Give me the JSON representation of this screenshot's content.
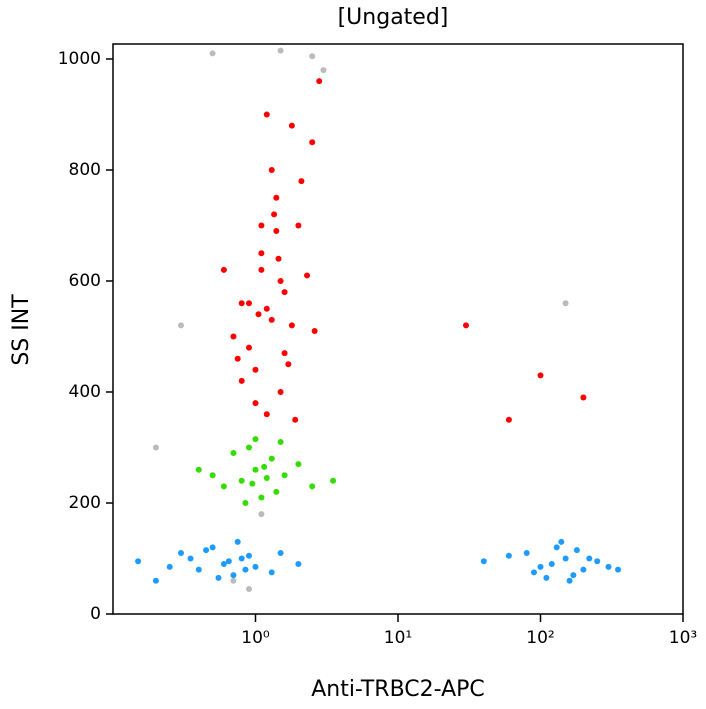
{
  "chart_data": {
    "type": "scatter",
    "title": "[Ungated]",
    "x_label": "Anti-TRBC2-APC",
    "y_label": "SS INT",
    "x_scale": "log",
    "xlim": [
      0.1,
      1000
    ],
    "xticks": [
      {
        "value": 1,
        "label": "10⁰"
      },
      {
        "value": 10,
        "label": "10¹"
      },
      {
        "value": 100,
        "label": "10²"
      },
      {
        "value": 1000,
        "label": "10³"
      }
    ],
    "ylim": [
      0,
      1027
    ],
    "yticks": [
      0,
      200,
      400,
      600,
      800,
      1000
    ],
    "series": [
      {
        "color": "#bbbbbb",
        "x": [
          0.5,
          1.5,
          2.5,
          0.3,
          3.0,
          0.9,
          0.2,
          150,
          1.1,
          0.7
        ],
        "values": [
          1010,
          1015,
          1005,
          520,
          980,
          45,
          300,
          560,
          180,
          60
        ]
      },
      {
        "color": "#1e9bff",
        "x": [
          0.6,
          0.8,
          0.4,
          1.0,
          0.3,
          0.7,
          0.15,
          0.5,
          1.3,
          0.9,
          0.2,
          0.65,
          2.0,
          0.35,
          0.75,
          0.55,
          1.5,
          0.25,
          0.45,
          0.85
        ],
        "values": [
          90,
          100,
          80,
          85,
          110,
          70,
          95,
          120,
          75,
          105,
          60,
          95,
          90,
          100,
          130,
          65,
          110,
          85,
          115,
          80
        ]
      },
      {
        "color": "#1e9bff",
        "x": [
          120,
          150,
          100,
          200,
          80,
          170,
          250,
          60,
          130,
          300,
          90,
          180,
          110,
          40,
          220,
          140,
          350,
          160
        ],
        "values": [
          90,
          100,
          85,
          80,
          110,
          70,
          95,
          105,
          120,
          85,
          75,
          115,
          65,
          95,
          100,
          130,
          80,
          60
        ]
      },
      {
        "color": "#33dd00",
        "x": [
          1.0,
          0.8,
          1.3,
          0.6,
          1.6,
          0.9,
          1.1,
          2.0,
          0.5,
          1.4,
          0.7,
          1.2,
          2.5,
          0.4,
          1.0,
          3.5,
          0.85,
          1.5,
          1.15,
          0.95
        ],
        "values": [
          260,
          240,
          280,
          230,
          250,
          300,
          210,
          270,
          250,
          220,
          290,
          245,
          230,
          260,
          315,
          240,
          200,
          310,
          265,
          235
        ]
      },
      {
        "color": "#ff0000",
        "x": [
          1.2,
          1.5,
          0.9,
          1.8,
          1.1,
          2.0,
          0.8,
          1.4,
          1.6,
          1.0,
          2.3,
          0.7,
          1.3,
          1.7,
          1.2,
          0.9,
          2.5,
          1.1,
          1.5,
          0.6,
          1.9,
          1.3,
          1.0,
          2.8,
          1.4,
          0.8,
          1.6,
          1.2,
          2.1,
          1.1,
          1.8,
          0.75,
          1.35,
          2.6,
          1.05,
          1.45,
          30,
          100,
          60,
          200
        ],
        "values": [
          550,
          600,
          480,
          520,
          650,
          700,
          420,
          750,
          580,
          380,
          610,
          500,
          800,
          450,
          900,
          560,
          850,
          700,
          400,
          620,
          350,
          530,
          440,
          960,
          690,
          560,
          470,
          360,
          780,
          620,
          880,
          460,
          720,
          510,
          540,
          640,
          520,
          430,
          350,
          390
        ]
      }
    ]
  }
}
